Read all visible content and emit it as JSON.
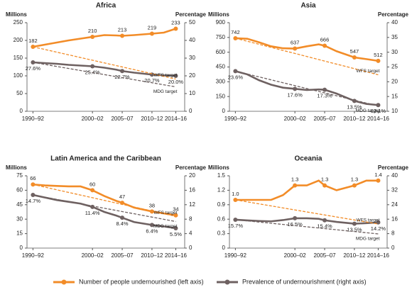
{
  "chart_data": [
    {
      "type": "line",
      "title": "Africa",
      "y_label": "Millions",
      "y2_label": "Percentage",
      "x": [
        1991,
        1993,
        1995,
        1997,
        1999,
        2001,
        2003,
        2005,
        2006,
        2008,
        2011,
        2013,
        2015
      ],
      "xlim": [
        1990,
        2016.5
      ],
      "xticks": [
        {
          "value": 1991,
          "label": "1990–92"
        },
        {
          "value": 2001,
          "label": "2000–02"
        },
        {
          "value": 2006,
          "label": "2005–07"
        },
        {
          "value": 2011,
          "label": "2010–12"
        },
        {
          "value": 2015,
          "label": "2014–16"
        }
      ],
      "ylim": [
        0,
        250
      ],
      "yticks": [
        0,
        50,
        100,
        150,
        200,
        250
      ],
      "y2lim": [
        0,
        50
      ],
      "y2ticks": [
        0,
        10,
        20,
        30,
        40,
        50
      ],
      "series": [
        {
          "name": "Number of people undernourished (left axis)",
          "color": "#f28c28",
          "axis": "y",
          "values": [
            182,
            188,
            194,
            200,
            205,
            210,
            215,
            214,
            213,
            215,
            219,
            222,
            233
          ],
          "value_labels": [
            "182",
            null,
            null,
            null,
            null,
            "210",
            null,
            null,
            "213",
            null,
            "219",
            null,
            "233"
          ]
        },
        {
          "name": "Prevalence of undernourishment (right axis)",
          "color": "#6e6161",
          "axis": "y2",
          "values": [
            27.6,
            27.2,
            26.8,
            26.2,
            25.8,
            25.4,
            24.6,
            23.5,
            22.7,
            21.8,
            20.7,
            20.3,
            20.0
          ],
          "value_labels": [
            "27.6%",
            null,
            null,
            null,
            null,
            "25.4%",
            null,
            null,
            "22.7%",
            null,
            "20.7%",
            null,
            "20.0%"
          ]
        },
        {
          "name": "WFS target",
          "color": "#f28c28",
          "axis": "y",
          "dashed": true,
          "x": [
            1991,
            2015
          ],
          "values": [
            182,
            91
          ]
        },
        {
          "name": "MDG target",
          "color": "#6e6161",
          "axis": "y2",
          "dashed": true,
          "x": [
            1991,
            2015
          ],
          "values": [
            27.6,
            13.8
          ]
        }
      ]
    },
    {
      "type": "line",
      "title": "Asia",
      "y_label": "Millions",
      "y2_label": "Percentage",
      "x": [
        1991,
        1993,
        1995,
        1997,
        1999,
        2001,
        2003,
        2005,
        2006,
        2008,
        2011,
        2013,
        2015
      ],
      "xlim": [
        1990,
        2016.5
      ],
      "xticks": [
        {
          "value": 1991,
          "label": "1990–92"
        },
        {
          "value": 2001,
          "label": "2000–02"
        },
        {
          "value": 2006,
          "label": "2005–07"
        },
        {
          "value": 2011,
          "label": "2010–12"
        },
        {
          "value": 2015,
          "label": "2014–16"
        }
      ],
      "ylim": [
        0,
        900
      ],
      "yticks": [
        0,
        150,
        300,
        450,
        600,
        750,
        900
      ],
      "y2lim": [
        10,
        40
      ],
      "y2ticks": [
        10,
        15,
        20,
        25,
        30,
        35,
        40
      ],
      "series": [
        {
          "color": "#f28c28",
          "axis": "y",
          "values": [
            742,
            737,
            700,
            660,
            640,
            637,
            660,
            680,
            666,
            610,
            547,
            530,
            512
          ],
          "value_labels": [
            "742",
            null,
            null,
            null,
            null,
            "637",
            null,
            null,
            "666",
            null,
            "547",
            null,
            "512"
          ]
        },
        {
          "color": "#6e6161",
          "axis": "y2",
          "values": [
            23.6,
            22.5,
            20.5,
            19,
            18,
            17.6,
            17.2,
            17.4,
            17.3,
            16,
            13.5,
            12.5,
            12.1
          ],
          "value_labels": [
            "23.6%",
            null,
            null,
            null,
            null,
            "17.6%",
            null,
            null,
            "17.3%",
            null,
            "13.5%",
            null,
            "12.1%"
          ]
        },
        {
          "name": "WFS target",
          "color": "#f28c28",
          "axis": "y",
          "dashed": true,
          "x": [
            1991,
            2015
          ],
          "values": [
            742,
            371
          ]
        },
        {
          "name": "MDG target",
          "color": "#6e6161",
          "axis": "y2",
          "dashed": true,
          "x": [
            1991,
            2015
          ],
          "values": [
            23.6,
            11.8
          ]
        }
      ]
    },
    {
      "type": "line",
      "title": "Latin America and the Caribbean",
      "y_label": "Millions",
      "y2_label": "Percentage",
      "x": [
        1991,
        1993,
        1995,
        1997,
        1999,
        2001,
        2003,
        2005,
        2006,
        2008,
        2011,
        2013,
        2015
      ],
      "xlim": [
        1990,
        2016.5
      ],
      "xticks": [
        {
          "value": 1991,
          "label": "1990–92"
        },
        {
          "value": 2001,
          "label": "2000–02"
        },
        {
          "value": 2006,
          "label": "2005–07"
        },
        {
          "value": 2011,
          "label": "2010–12"
        },
        {
          "value": 2015,
          "label": "2014–16"
        }
      ],
      "ylim": [
        0,
        75
      ],
      "yticks": [
        0,
        15,
        30,
        45,
        60,
        75
      ],
      "y2lim": [
        0,
        20
      ],
      "y2ticks": [
        0,
        4,
        8,
        12,
        16,
        20
      ],
      "series": [
        {
          "color": "#f28c28",
          "axis": "y",
          "values": [
            66,
            65,
            64.5,
            64,
            64,
            60,
            54,
            49,
            47,
            42,
            38,
            36,
            34
          ],
          "value_labels": [
            "66",
            null,
            null,
            null,
            null,
            "60",
            null,
            null,
            "47",
            null,
            "38",
            null,
            "34"
          ]
        },
        {
          "color": "#6e6161",
          "axis": "y2",
          "values": [
            14.7,
            14,
            13.3,
            12.8,
            12.3,
            11.4,
            10,
            9,
            8.4,
            7.2,
            6.4,
            6.0,
            5.5
          ],
          "value_labels": [
            "14.7%",
            null,
            null,
            null,
            null,
            "11.4%",
            null,
            null,
            "8.4%",
            null,
            "6.4%",
            null,
            "5.5%"
          ]
        },
        {
          "name": "WFS target",
          "color": "#f28c28",
          "axis": "y",
          "dashed": true,
          "x": [
            1991,
            2015
          ],
          "values": [
            66,
            33
          ]
        },
        {
          "name": "MDG target",
          "color": "#6e6161",
          "axis": "y2",
          "dashed": true,
          "x": [
            1991,
            2015
          ],
          "values": [
            14.7,
            7.35
          ]
        }
      ]
    },
    {
      "type": "line",
      "title": "Oceania",
      "y_label": "Millions",
      "y2_label": "Percentage",
      "x": [
        1991,
        1993,
        1995,
        1997,
        1999,
        2001,
        2003,
        2005,
        2006,
        2008,
        2011,
        2013,
        2015
      ],
      "xlim": [
        1990,
        2016.5
      ],
      "xticks": [
        {
          "value": 1991,
          "label": "1990–92"
        },
        {
          "value": 2001,
          "label": "2000–02"
        },
        {
          "value": 2006,
          "label": "2005–07"
        },
        {
          "value": 2011,
          "label": "2010–12"
        },
        {
          "value": 2015,
          "label": "2014–16"
        }
      ],
      "ylim": [
        0,
        1.5
      ],
      "yticks": [
        0,
        0.3,
        0.6,
        0.9,
        1.2,
        1.5
      ],
      "y2lim": [
        0,
        40
      ],
      "y2ticks": [
        0,
        8,
        16,
        24,
        32,
        40
      ],
      "series": [
        {
          "color": "#f28c28",
          "axis": "y",
          "values": [
            1.0,
            1.0,
            1.0,
            1.0,
            1.1,
            1.3,
            1.3,
            1.4,
            1.3,
            1.2,
            1.3,
            1.4,
            1.4
          ],
          "value_labels": [
            "1.0",
            null,
            null,
            null,
            null,
            "1.3",
            null,
            null,
            "1.3",
            null,
            "1.3",
            null,
            "1.4"
          ]
        },
        {
          "color": "#6e6161",
          "axis": "y2",
          "values": [
            15.7,
            15.3,
            15,
            14.8,
            15.5,
            16.5,
            16.5,
            16.2,
            15.4,
            14.5,
            13.5,
            13.8,
            14.2
          ],
          "value_labels": [
            "15.7%",
            null,
            null,
            null,
            null,
            "16.5%",
            null,
            null,
            "15.4%",
            null,
            "13.5%",
            null,
            "14.2%"
          ]
        },
        {
          "name": "WFS target",
          "color": "#f28c28",
          "axis": "y",
          "dashed": true,
          "x": [
            1991,
            2015
          ],
          "values": [
            1.0,
            0.5
          ]
        },
        {
          "name": "MDG target",
          "color": "#6e6161",
          "axis": "y2",
          "dashed": true,
          "x": [
            1991,
            2015
          ],
          "values": [
            15.7,
            7.85
          ]
        }
      ]
    }
  ]
}
